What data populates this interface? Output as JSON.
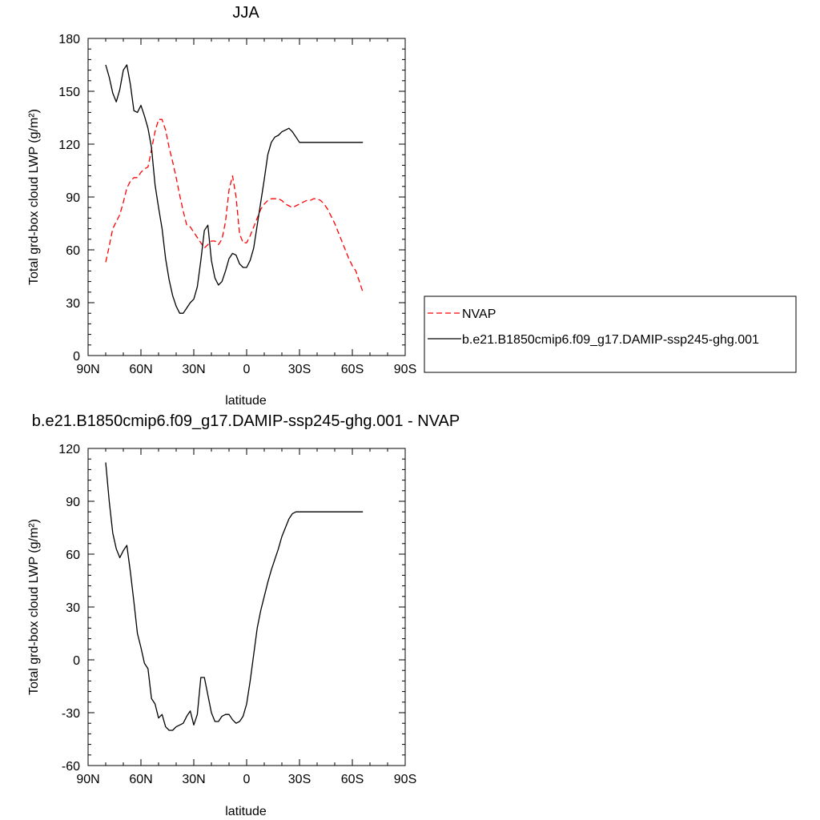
{
  "chart_data": [
    {
      "type": "line",
      "title": "JJA",
      "xlabel": "latitude",
      "ylabel": "Total grd-box cloud LWP (g/m²)",
      "xlim": [
        -90,
        90
      ],
      "ylim": [
        0,
        180
      ],
      "xticks": [
        -90,
        -60,
        -30,
        0,
        30,
        60,
        90
      ],
      "xtick_labels": [
        "90N",
        "60N",
        "30N",
        "0",
        "30S",
        "60S",
        "90S"
      ],
      "yticks": [
        0,
        30,
        60,
        90,
        120,
        150,
        180
      ],
      "ytick_labels": [
        "0",
        "30",
        "60",
        "90",
        "120",
        "150",
        "180"
      ],
      "legend_position": "right",
      "series": [
        {
          "name": "NVAP",
          "color": "#ff0000",
          "dash": "dashed",
          "x": [
            -80,
            -78,
            -76,
            -74,
            -72,
            -70,
            -68,
            -66,
            -64,
            -62,
            -60,
            -58,
            -56,
            -54,
            -52,
            -50,
            -48,
            -46,
            -44,
            -42,
            -40,
            -38,
            -36,
            -34,
            -32,
            -30,
            -28,
            -26,
            -24,
            -22,
            -20,
            -18,
            -16,
            -14,
            -12,
            -10,
            -8,
            -6,
            -4,
            -2,
            0,
            2,
            4,
            6,
            8,
            10,
            12,
            14,
            16,
            18,
            20,
            22,
            24,
            26,
            28,
            30,
            32,
            34,
            36,
            38,
            40,
            42,
            44,
            46,
            48,
            50,
            52,
            54,
            56,
            58,
            60,
            62,
            64,
            66
          ],
          "y": [
            53,
            62,
            72,
            76,
            80,
            87,
            95,
            99,
            101,
            101,
            104,
            106,
            107,
            117,
            127,
            134,
            134,
            128,
            118,
            110,
            101,
            91,
            82,
            74,
            73,
            70,
            67,
            64,
            61,
            63,
            65,
            65,
            63,
            66,
            76,
            94,
            102,
            90,
            69,
            64,
            64,
            68,
            73,
            78,
            83,
            86,
            88,
            89,
            89,
            89,
            88,
            86,
            85,
            84,
            85,
            86,
            87,
            88,
            88,
            89,
            89,
            88,
            86,
            83,
            79,
            75,
            70,
            65,
            60,
            55,
            51,
            48,
            42,
            36
          ]
        },
        {
          "name": "b.e21.B1850cmip6.f09_g17.DAMIP-ssp245-ghg.001",
          "color": "#000000",
          "dash": "solid",
          "x": [
            -80,
            -78,
            -76,
            -74,
            -72,
            -70,
            -68,
            -66,
            -64,
            -62,
            -60,
            -58,
            -56,
            -54,
            -52,
            -50,
            -48,
            -46,
            -44,
            -42,
            -40,
            -38,
            -36,
            -34,
            -32,
            -30,
            -28,
            -26,
            -24,
            -22,
            -20,
            -18,
            -16,
            -14,
            -12,
            -10,
            -8,
            -6,
            -4,
            -2,
            0,
            2,
            4,
            6,
            8,
            10,
            12,
            14,
            16,
            18,
            20,
            22,
            24,
            26,
            28,
            30,
            32,
            34,
            36,
            38,
            40,
            42,
            44,
            46,
            48,
            50,
            52,
            54,
            56,
            58,
            60,
            62,
            64,
            66
          ],
          "y": [
            165,
            158,
            149,
            144,
            151,
            162,
            165,
            154,
            139,
            138,
            142,
            136,
            129,
            118,
            97,
            84,
            72,
            55,
            43,
            34,
            28,
            24,
            24,
            27,
            30,
            32,
            39,
            54,
            71,
            74,
            54,
            44,
            40,
            42,
            48,
            55,
            58,
            57,
            52,
            50,
            50,
            54,
            61,
            74,
            87,
            100,
            114,
            121,
            124,
            125,
            127,
            128,
            129,
            127,
            124,
            121,
            121,
            121,
            121,
            121,
            121,
            121,
            121,
            121,
            121,
            121,
            121,
            121,
            121,
            121,
            121,
            121,
            121,
            121
          ]
        }
      ]
    },
    {
      "type": "line",
      "title": "b.e21.B1850cmip6.f09_g17.DAMIP-ssp245-ghg.001 - NVAP",
      "xlabel": "latitude",
      "ylabel": "Total grd-box cloud LWP (g/m²)",
      "xlim": [
        -90,
        90
      ],
      "ylim": [
        -60,
        120
      ],
      "xticks": [
        -90,
        -60,
        -30,
        0,
        30,
        60,
        90
      ],
      "xtick_labels": [
        "90N",
        "60N",
        "30N",
        "0",
        "30S",
        "60S",
        "90S"
      ],
      "yticks": [
        -60,
        -30,
        0,
        30,
        60,
        90,
        120
      ],
      "ytick_labels": [
        "-60",
        "-30",
        "0",
        "30",
        "60",
        "90",
        "120"
      ],
      "series": [
        {
          "color": "#000000",
          "dash": "solid",
          "x": [
            -80,
            -78,
            -76,
            -74,
            -72,
            -70,
            -68,
            -66,
            -64,
            -62,
            -60,
            -58,
            -56,
            -54,
            -52,
            -50,
            -48,
            -46,
            -44,
            -42,
            -40,
            -38,
            -36,
            -34,
            -32,
            -30,
            -28,
            -26,
            -24,
            -22,
            -20,
            -18,
            -16,
            -14,
            -12,
            -10,
            -8,
            -6,
            -4,
            -2,
            0,
            2,
            4,
            6,
            8,
            10,
            12,
            14,
            16,
            18,
            20,
            22,
            24,
            26,
            28,
            30,
            32,
            34,
            36,
            38,
            40,
            42,
            44,
            46,
            48,
            50,
            52,
            54,
            56,
            58,
            60,
            62,
            64,
            66
          ],
          "y": [
            112,
            90,
            72,
            63,
            58,
            62,
            65,
            50,
            33,
            15,
            7,
            -2,
            -5,
            -22,
            -25,
            -33,
            -31,
            -38,
            -40,
            -40,
            -38,
            -37,
            -36,
            -32,
            -29,
            -37,
            -31,
            -10,
            -10,
            -20,
            -30,
            -35,
            -35,
            -32,
            -31,
            -31,
            -34,
            -36,
            -35,
            -32,
            -25,
            -12,
            3,
            18,
            28,
            36,
            44,
            51,
            57,
            63,
            70,
            75,
            80,
            83,
            84,
            84,
            84,
            84,
            84,
            84,
            84,
            84,
            84,
            84,
            84,
            84,
            84,
            84,
            84,
            84,
            84,
            84,
            84,
            84
          ]
        }
      ]
    }
  ],
  "legend": {
    "items": [
      {
        "label": "NVAP"
      },
      {
        "label": "b.e21.B1850cmip6.f09_g17.DAMIP-ssp245-ghg.001"
      }
    ]
  }
}
